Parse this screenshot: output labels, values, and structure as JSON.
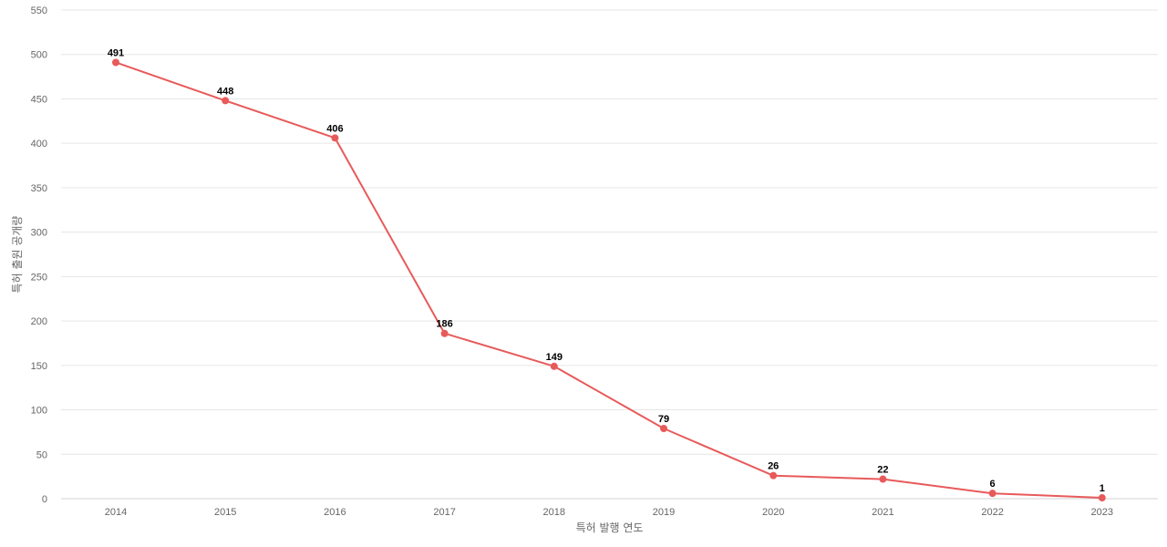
{
  "chart_data": {
    "type": "line",
    "title": "",
    "xlabel": "특허 발행 연도",
    "ylabel": "특허 출원 공개량",
    "categories": [
      "2014",
      "2015",
      "2016",
      "2017",
      "2018",
      "2019",
      "2020",
      "2021",
      "2022",
      "2023"
    ],
    "series": [
      {
        "values": [
          491,
          448,
          406,
          186,
          149,
          79,
          26,
          22,
          6,
          1
        ],
        "color": "#e85a5a"
      }
    ],
    "ylim": [
      0,
      550
    ],
    "yticks": [
      0,
      50,
      100,
      150,
      200,
      250,
      300,
      350,
      400,
      450,
      500,
      550
    ],
    "grid": true,
    "legend": "none",
    "data_labels": true
  }
}
